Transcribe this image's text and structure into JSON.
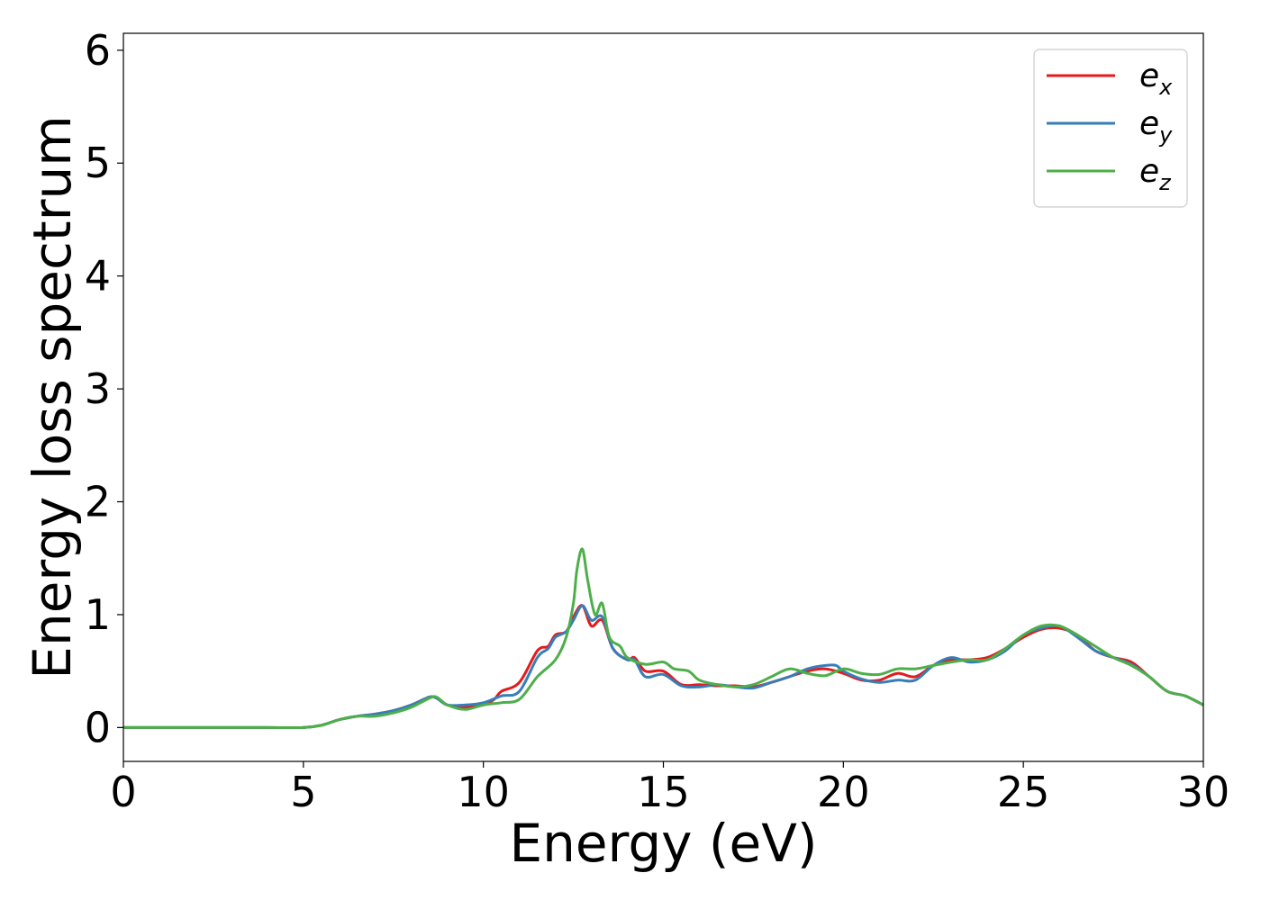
{
  "chart_data": {
    "type": "line",
    "xlabel": "Energy (eV)",
    "ylabel": "Energy loss spectrum",
    "xlim": [
      0,
      30
    ],
    "ylim": [
      -0.3,
      6.15
    ],
    "xticks": [
      "0",
      "5",
      "10",
      "15",
      "20",
      "25",
      "30"
    ],
    "yticks": [
      "0",
      "1",
      "2",
      "3",
      "4",
      "5",
      "6"
    ],
    "grid": false,
    "legend_position": "top-right",
    "series": [
      {
        "name": "e",
        "subscript": "x",
        "color": "#e41a1c",
        "x": [
          0,
          1,
          2,
          3,
          4,
          5,
          5.5,
          6,
          6.5,
          7,
          7.5,
          8,
          8.5,
          8.7,
          9,
          9.5,
          10,
          10.3,
          10.5,
          11,
          11.5,
          11.8,
          12,
          12.3,
          12.5,
          12.75,
          13,
          13.3,
          13.6,
          14,
          14.2,
          14.5,
          15,
          15.5,
          16,
          16.5,
          17,
          17.5,
          18,
          18.5,
          19,
          19.5,
          20,
          20.5,
          21,
          21.5,
          22,
          22.5,
          23,
          23.5,
          24,
          24.5,
          25,
          25.5,
          26,
          26.5,
          27,
          27.5,
          28,
          28.5,
          29,
          29.5,
          30
        ],
        "y": [
          0,
          0,
          0,
          0,
          0,
          0,
          0.02,
          0.07,
          0.1,
          0.12,
          0.15,
          0.2,
          0.27,
          0.26,
          0.2,
          0.18,
          0.2,
          0.25,
          0.32,
          0.4,
          0.68,
          0.72,
          0.82,
          0.85,
          0.98,
          1.08,
          0.9,
          0.95,
          0.7,
          0.6,
          0.62,
          0.5,
          0.5,
          0.38,
          0.38,
          0.37,
          0.37,
          0.36,
          0.4,
          0.45,
          0.5,
          0.52,
          0.48,
          0.42,
          0.42,
          0.48,
          0.45,
          0.55,
          0.6,
          0.6,
          0.62,
          0.7,
          0.8,
          0.87,
          0.88,
          0.82,
          0.68,
          0.62,
          0.58,
          0.45,
          0.32,
          0.28,
          0.2
        ]
      },
      {
        "name": "e",
        "subscript": "y",
        "color": "#377eb8",
        "x": [
          0,
          1,
          2,
          3,
          4,
          5,
          5.5,
          6,
          6.5,
          7,
          7.5,
          8,
          8.5,
          8.7,
          9,
          9.5,
          10,
          10.5,
          11,
          11.5,
          11.8,
          12,
          12.3,
          12.5,
          12.75,
          13,
          13.3,
          13.6,
          14,
          14.2,
          14.5,
          15,
          15.5,
          16,
          16.5,
          17,
          17.5,
          18,
          18.5,
          19,
          19.5,
          19.8,
          20,
          20.5,
          21,
          21.5,
          22,
          22.5,
          23,
          23.5,
          24,
          24.5,
          25,
          25.5,
          26,
          26.5,
          27,
          27.5,
          28,
          28.5,
          29,
          29.5,
          30
        ],
        "y": [
          0,
          0,
          0,
          0,
          0,
          0,
          0.02,
          0.07,
          0.1,
          0.12,
          0.15,
          0.2,
          0.27,
          0.26,
          0.2,
          0.2,
          0.22,
          0.28,
          0.32,
          0.62,
          0.7,
          0.8,
          0.85,
          0.95,
          1.08,
          0.95,
          0.98,
          0.7,
          0.6,
          0.6,
          0.45,
          0.47,
          0.37,
          0.36,
          0.38,
          0.36,
          0.35,
          0.4,
          0.45,
          0.52,
          0.55,
          0.55,
          0.5,
          0.43,
          0.4,
          0.42,
          0.42,
          0.55,
          0.62,
          0.58,
          0.6,
          0.68,
          0.82,
          0.88,
          0.9,
          0.8,
          0.68,
          0.62,
          0.56,
          0.45,
          0.32,
          0.28,
          0.2
        ]
      },
      {
        "name": "e",
        "subscript": "z",
        "color": "#4daf4a",
        "x": [
          0,
          1,
          2,
          3,
          4,
          5,
          5.5,
          6,
          6.5,
          7,
          7.5,
          8,
          8.5,
          8.7,
          9,
          9.5,
          10,
          10.5,
          11,
          11.5,
          12,
          12.3,
          12.5,
          12.6,
          12.75,
          12.9,
          13.1,
          13.3,
          13.5,
          13.8,
          14,
          14.5,
          15,
          15.3,
          15.7,
          16,
          16.5,
          17,
          17.5,
          18,
          18.5,
          19,
          19.5,
          20,
          20.5,
          21,
          21.5,
          22,
          22.5,
          23,
          23.5,
          24,
          24.5,
          25,
          25.5,
          26,
          26.5,
          27,
          27.5,
          28,
          28.5,
          29,
          29.5,
          30
        ],
        "y": [
          0,
          0,
          0,
          0,
          0,
          0,
          0.02,
          0.07,
          0.1,
          0.1,
          0.13,
          0.18,
          0.26,
          0.27,
          0.2,
          0.16,
          0.2,
          0.22,
          0.25,
          0.45,
          0.6,
          0.8,
          1.1,
          1.4,
          1.58,
          1.3,
          1.0,
          1.1,
          0.8,
          0.72,
          0.62,
          0.56,
          0.58,
          0.52,
          0.5,
          0.42,
          0.38,
          0.36,
          0.38,
          0.45,
          0.52,
          0.48,
          0.46,
          0.52,
          0.48,
          0.47,
          0.52,
          0.52,
          0.55,
          0.58,
          0.6,
          0.6,
          0.7,
          0.82,
          0.9,
          0.9,
          0.82,
          0.72,
          0.62,
          0.55,
          0.45,
          0.32,
          0.28,
          0.2
        ]
      }
    ]
  }
}
